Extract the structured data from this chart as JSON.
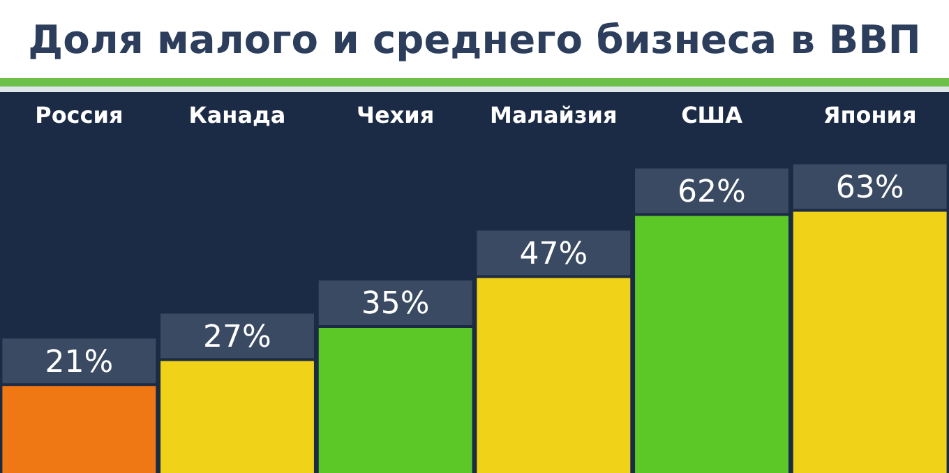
{
  "chart_data": {
    "type": "bar",
    "title": "Доля малого и среднего бизнеса в ВВП",
    "categories": [
      "Россия",
      "Канада",
      "Чехия",
      "Малайзия",
      "США",
      "Япония"
    ],
    "values": [
      21,
      27,
      35,
      47,
      62,
      63
    ],
    "value_labels": [
      "21%",
      "27%",
      "35%",
      "47%",
      "62%",
      "63%"
    ],
    "colors": [
      "#f07814",
      "#f0d218",
      "#5cc828",
      "#f0d218",
      "#5cc828",
      "#f0d218"
    ],
    "legend": false,
    "grid": false
  }
}
